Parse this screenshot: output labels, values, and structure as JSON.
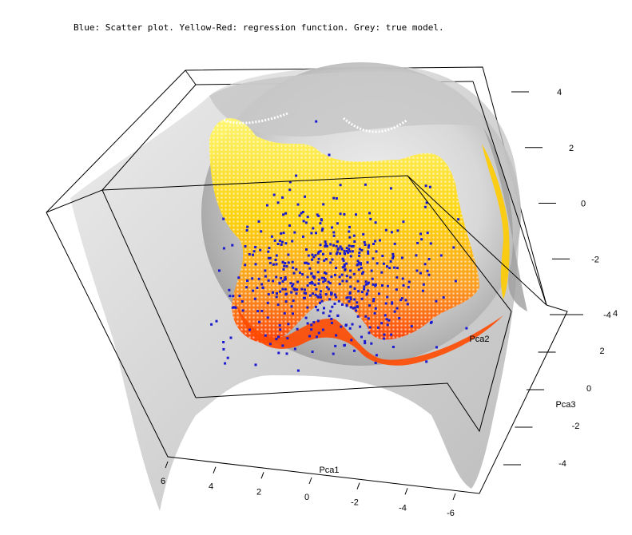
{
  "chart_data": {
    "type": "scatter",
    "subtype": "3d-scatter-with-surfaces",
    "title": "Blue: Scatter plot. Yellow-Red: regression function. Grey: true model.",
    "axes": {
      "x": {
        "label": "Pca1",
        "ticks": [
          6,
          4,
          2,
          0,
          -2,
          -4,
          -6
        ],
        "range": [
          -6,
          6
        ]
      },
      "y": {
        "label": "Pca2",
        "ticks": [
          4,
          2,
          0,
          -2,
          -4
        ],
        "range": [
          -4,
          4
        ]
      },
      "z": {
        "label": "Pca3",
        "ticks": [
          4,
          2,
          0,
          -2,
          -4
        ],
        "range": [
          -4,
          4
        ]
      }
    },
    "series": [
      {
        "name": "Scatter plot",
        "kind": "points",
        "color": "#1a1ad0"
      },
      {
        "name": "regression function",
        "kind": "surface",
        "color_low": "#fff200",
        "color_high": "#ff3300"
      },
      {
        "name": "true model",
        "kind": "surface",
        "color": "#b4b4b4"
      }
    ],
    "grid": false,
    "legend": "title-text"
  }
}
